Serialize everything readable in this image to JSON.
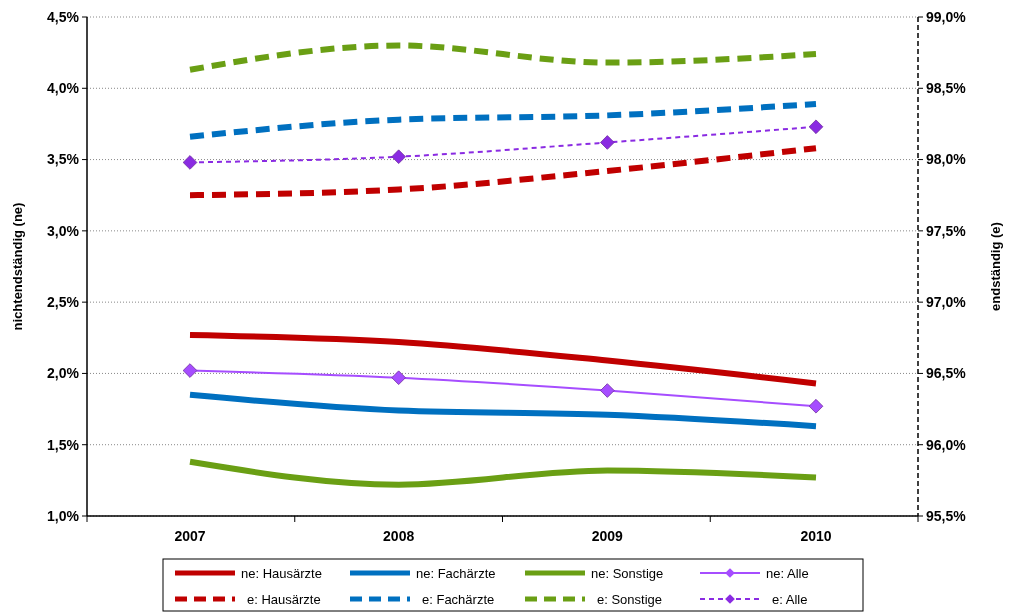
{
  "chart_data": {
    "type": "line",
    "ylabel": "nichtendständig (ne)",
    "y2label": "endständig (e)",
    "categories": [
      "2007",
      "2008",
      "2009",
      "2010"
    ],
    "ylim": [
      1.0,
      4.5
    ],
    "yticks": [
      {
        "value": 1.0,
        "label": "1,0%"
      },
      {
        "value": 1.5,
        "label": "1,5%"
      },
      {
        "value": 2.0,
        "label": "2,0%"
      },
      {
        "value": 2.5,
        "label": "2,5%"
      },
      {
        "value": 3.0,
        "label": "3,0%"
      },
      {
        "value": 3.5,
        "label": "3,5%"
      },
      {
        "value": 4.0,
        "label": "4,0%"
      },
      {
        "value": 4.5,
        "label": "4,5%"
      }
    ],
    "y2lim": [
      95.5,
      99.0
    ],
    "y2ticks": [
      {
        "value": 95.5,
        "label": "95,5%"
      },
      {
        "value": 96.0,
        "label": "96,0%"
      },
      {
        "value": 96.5,
        "label": "96,5%"
      },
      {
        "value": 97.0,
        "label": "97,0%"
      },
      {
        "value": 97.5,
        "label": "97,5%"
      },
      {
        "value": 98.0,
        "label": "98,0%"
      },
      {
        "value": 98.5,
        "label": "98,5%"
      },
      {
        "value": 99.0,
        "label": "99,0%"
      }
    ],
    "grid": "y",
    "legend": "bottom",
    "series": [
      {
        "name": "ne: Hausärzte",
        "color": "#c00000",
        "values": [
          2.27,
          2.22,
          2.09,
          1.93
        ],
        "line_style": "solid",
        "marker": "none"
      },
      {
        "name": "ne: Fachärzte",
        "color": "#0070c0",
        "values": [
          1.85,
          1.74,
          1.71,
          1.63
        ],
        "line_style": "solid",
        "marker": "none"
      },
      {
        "name": "ne: Sonstige",
        "color": "#6a9f14",
        "values": [
          1.38,
          1.22,
          1.32,
          1.27
        ],
        "line_style": "solid",
        "marker": "none"
      },
      {
        "name": "ne: Alle",
        "color": "#a64dff",
        "values": [
          2.02,
          1.97,
          1.88,
          1.77
        ],
        "line_style": "solid",
        "marker": "diamond"
      },
      {
        "name": "e: Hausärzte",
        "color": "#c00000",
        "values": [
          97.75,
          97.79,
          97.92,
          98.08
        ],
        "line_style": "dashed",
        "marker": "none",
        "axis": "y2"
      },
      {
        "name": "e: Fachärzte",
        "color": "#0070c0",
        "values": [
          98.16,
          98.28,
          98.31,
          98.39
        ],
        "line_style": "dashed",
        "marker": "none",
        "axis": "y2"
      },
      {
        "name": "e: Sonstige",
        "color": "#6a9f14",
        "values": [
          98.63,
          98.8,
          98.68,
          98.74
        ],
        "line_style": "dashed",
        "marker": "none",
        "axis": "y2"
      },
      {
        "name": "e: Alle",
        "color": "#8a2be2",
        "values": [
          97.98,
          98.02,
          98.12,
          98.23
        ],
        "line_style": "dashed",
        "marker": "diamond",
        "axis": "y2"
      }
    ]
  }
}
